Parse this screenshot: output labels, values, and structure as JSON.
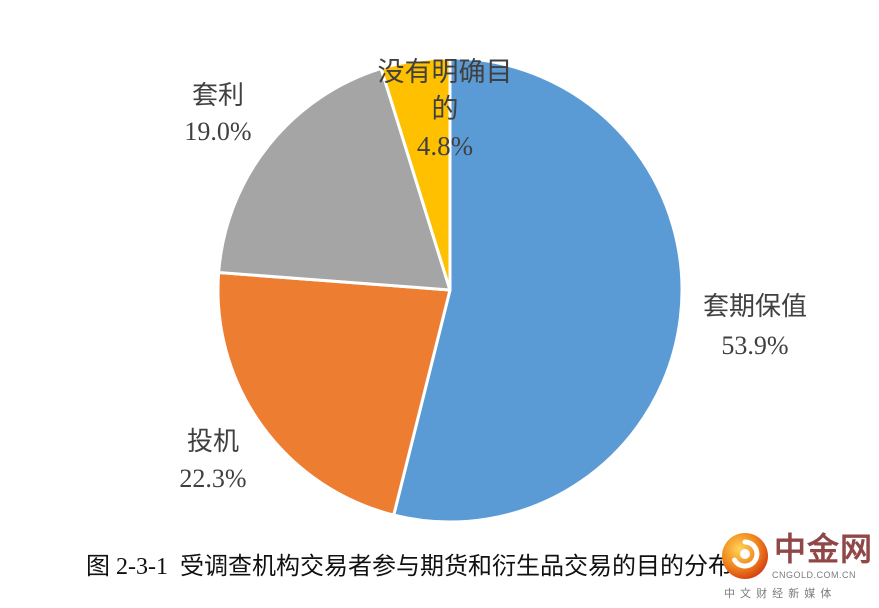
{
  "chart_data": {
    "type": "pie",
    "categories": [
      "套期保值",
      "投机",
      "套利",
      "没有明确目的"
    ],
    "values": [
      53.9,
      22.3,
      19.0,
      4.8
    ],
    "value_labels": [
      "53.9%",
      "22.3%",
      "19.0%",
      "4.8%"
    ],
    "colors": [
      "#5B9BD5",
      "#ED7D31",
      "#A5A5A5",
      "#FFC000"
    ],
    "start_angle": "top",
    "direction": "clockwise",
    "legend": "none",
    "slice_border_color": "#FFFFFF"
  },
  "caption": "图 2-3-1  受调查机构交易者参与期货和衍生品交易的目的分布",
  "watermark": {
    "brand": "中金网",
    "domain": "CNGOLD.COM.CN",
    "tagline": "中 文 财 经 新 媒 体"
  }
}
